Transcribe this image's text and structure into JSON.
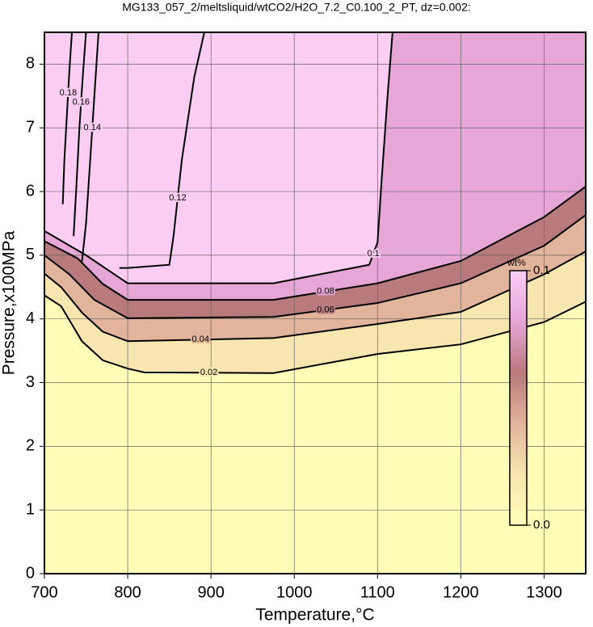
{
  "chart_data": {
    "type": "contour",
    "title": "MG133_057_2/meltsliquid/wtCO2/H2O_7.2_C0.100_2_PT, dz=0.002:",
    "xlabel": "Temperature,°C",
    "ylabel": "Pressure,x100MPa",
    "xlim": [
      700,
      1350
    ],
    "ylim": [
      0,
      8.5
    ],
    "xticks": [
      700,
      800,
      900,
      1000,
      1100,
      1200,
      1300
    ],
    "yticks": [
      0,
      1,
      2,
      3,
      4,
      5,
      6,
      7,
      8
    ],
    "grid": true,
    "line_color": "#000000",
    "colormap": [
      "#fefdb8",
      "#f7e6b0",
      "#e2b49c",
      "#b87a7c",
      "#e6a6d6",
      "#fbcdf3"
    ],
    "colorbar": {
      "label": "wt%",
      "lim": [
        0,
        0.1
      ],
      "ticks": [
        {
          "value": 0,
          "label": "0.0"
        },
        0.1
      ]
    },
    "contours": [
      {
        "level": 0.02,
        "x": [
          700,
          720,
          745,
          770,
          800,
          820,
          975,
          1100,
          1200,
          1300,
          1350
        ],
        "y": [
          4.37,
          4.2,
          3.65,
          3.35,
          3.22,
          3.16,
          3.15,
          3.45,
          3.6,
          3.95,
          4.27
        ]
      },
      {
        "level": 0.04,
        "x": [
          700,
          720,
          745,
          770,
          800,
          975,
          1100,
          1200,
          1300,
          1350
        ],
        "y": [
          4.71,
          4.5,
          4.1,
          3.8,
          3.65,
          3.7,
          3.92,
          4.11,
          4.7,
          5.06
        ]
      },
      {
        "level": 0.06,
        "x": [
          700,
          730,
          760,
          800,
          975,
          1100,
          1200,
          1300,
          1350
        ],
        "y": [
          5.0,
          4.7,
          4.3,
          4.01,
          4.03,
          4.25,
          4.56,
          5.15,
          5.63
        ]
      },
      {
        "level": 0.08,
        "x": [
          700,
          740,
          770,
          800,
          975,
          1100,
          1200,
          1300,
          1350
        ],
        "y": [
          5.22,
          4.95,
          4.55,
          4.3,
          4.3,
          4.56,
          4.91,
          5.6,
          6.08
        ]
      },
      {
        "level": 0.1,
        "x": [
          700,
          750,
          800,
          975,
          1090,
          1100,
          1105,
          1112,
          1118
        ],
        "y": [
          5.38,
          5.0,
          4.56,
          4.56,
          4.85,
          5.2,
          6.2,
          7.5,
          8.5
        ]
      },
      {
        "level": 0.12,
        "x": [
          790,
          800,
          850,
          855,
          865,
          880,
          892
        ],
        "y": [
          4.8,
          4.8,
          4.85,
          5.3,
          6.5,
          7.8,
          8.5
        ]
      },
      {
        "level": 0.14,
        "x": [
          745,
          750,
          755,
          760,
          765
        ],
        "y": [
          4.9,
          5.5,
          6.5,
          7.5,
          8.5
        ]
      },
      {
        "level": 0.16,
        "x": [
          735,
          738,
          742,
          746,
          750
        ],
        "y": [
          5.3,
          6.0,
          7.0,
          7.8,
          8.5
        ]
      },
      {
        "level": 0.18,
        "x": [
          722,
          724,
          727,
          730,
          733
        ],
        "y": [
          5.8,
          6.5,
          7.2,
          7.9,
          8.5
        ]
      }
    ]
  }
}
